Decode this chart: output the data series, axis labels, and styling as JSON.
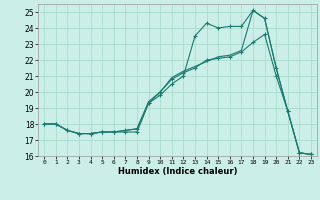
{
  "xlabel": "Humidex (Indice chaleur)",
  "bg_color": "#cceee8",
  "grid_color": "#aaddcc",
  "line_color": "#1a7a6e",
  "xlim": [
    -0.5,
    23.5
  ],
  "ylim": [
    16,
    25.5
  ],
  "xticks": [
    0,
    1,
    2,
    3,
    4,
    5,
    6,
    7,
    8,
    9,
    10,
    11,
    12,
    13,
    14,
    15,
    16,
    17,
    18,
    19,
    20,
    21,
    22,
    23
  ],
  "yticks": [
    16,
    17,
    18,
    19,
    20,
    21,
    22,
    23,
    24,
    25
  ],
  "series1_x": [
    0,
    1,
    2,
    3,
    4,
    5,
    6,
    7,
    8,
    9,
    10,
    11,
    12,
    13,
    14,
    15,
    16,
    17,
    18,
    19,
    20,
    21,
    22,
    23
  ],
  "series1_y": [
    18.0,
    18.0,
    17.6,
    17.4,
    17.4,
    17.5,
    17.5,
    17.5,
    17.5,
    19.3,
    19.8,
    20.5,
    21.0,
    23.5,
    24.3,
    24.0,
    24.1,
    24.1,
    25.1,
    24.6,
    21.5,
    18.8,
    16.2,
    16.1
  ],
  "series2_x": [
    0,
    1,
    2,
    3,
    4,
    5,
    6,
    7,
    8,
    9,
    10,
    11,
    12,
    13,
    14,
    15,
    16,
    17,
    18,
    19,
    20,
    21,
    22,
    23
  ],
  "series2_y": [
    18.0,
    18.0,
    17.6,
    17.4,
    17.4,
    17.5,
    17.5,
    17.6,
    17.7,
    19.3,
    20.0,
    20.8,
    21.2,
    21.5,
    22.0,
    22.1,
    22.2,
    22.5,
    23.1,
    23.6,
    21.0,
    18.8,
    16.2,
    16.1
  ],
  "series3_x": [
    0,
    1,
    2,
    3,
    4,
    5,
    6,
    7,
    8,
    9,
    10,
    11,
    12,
    13,
    14,
    15,
    16,
    17,
    18,
    19,
    20,
    21,
    22,
    23
  ],
  "series3_y": [
    18.0,
    18.0,
    17.6,
    17.4,
    17.4,
    17.5,
    17.5,
    17.6,
    17.7,
    19.4,
    20.0,
    20.9,
    21.3,
    21.6,
    21.9,
    22.2,
    22.3,
    22.6,
    25.1,
    24.6,
    21.5,
    18.8,
    16.2,
    16.1
  ]
}
